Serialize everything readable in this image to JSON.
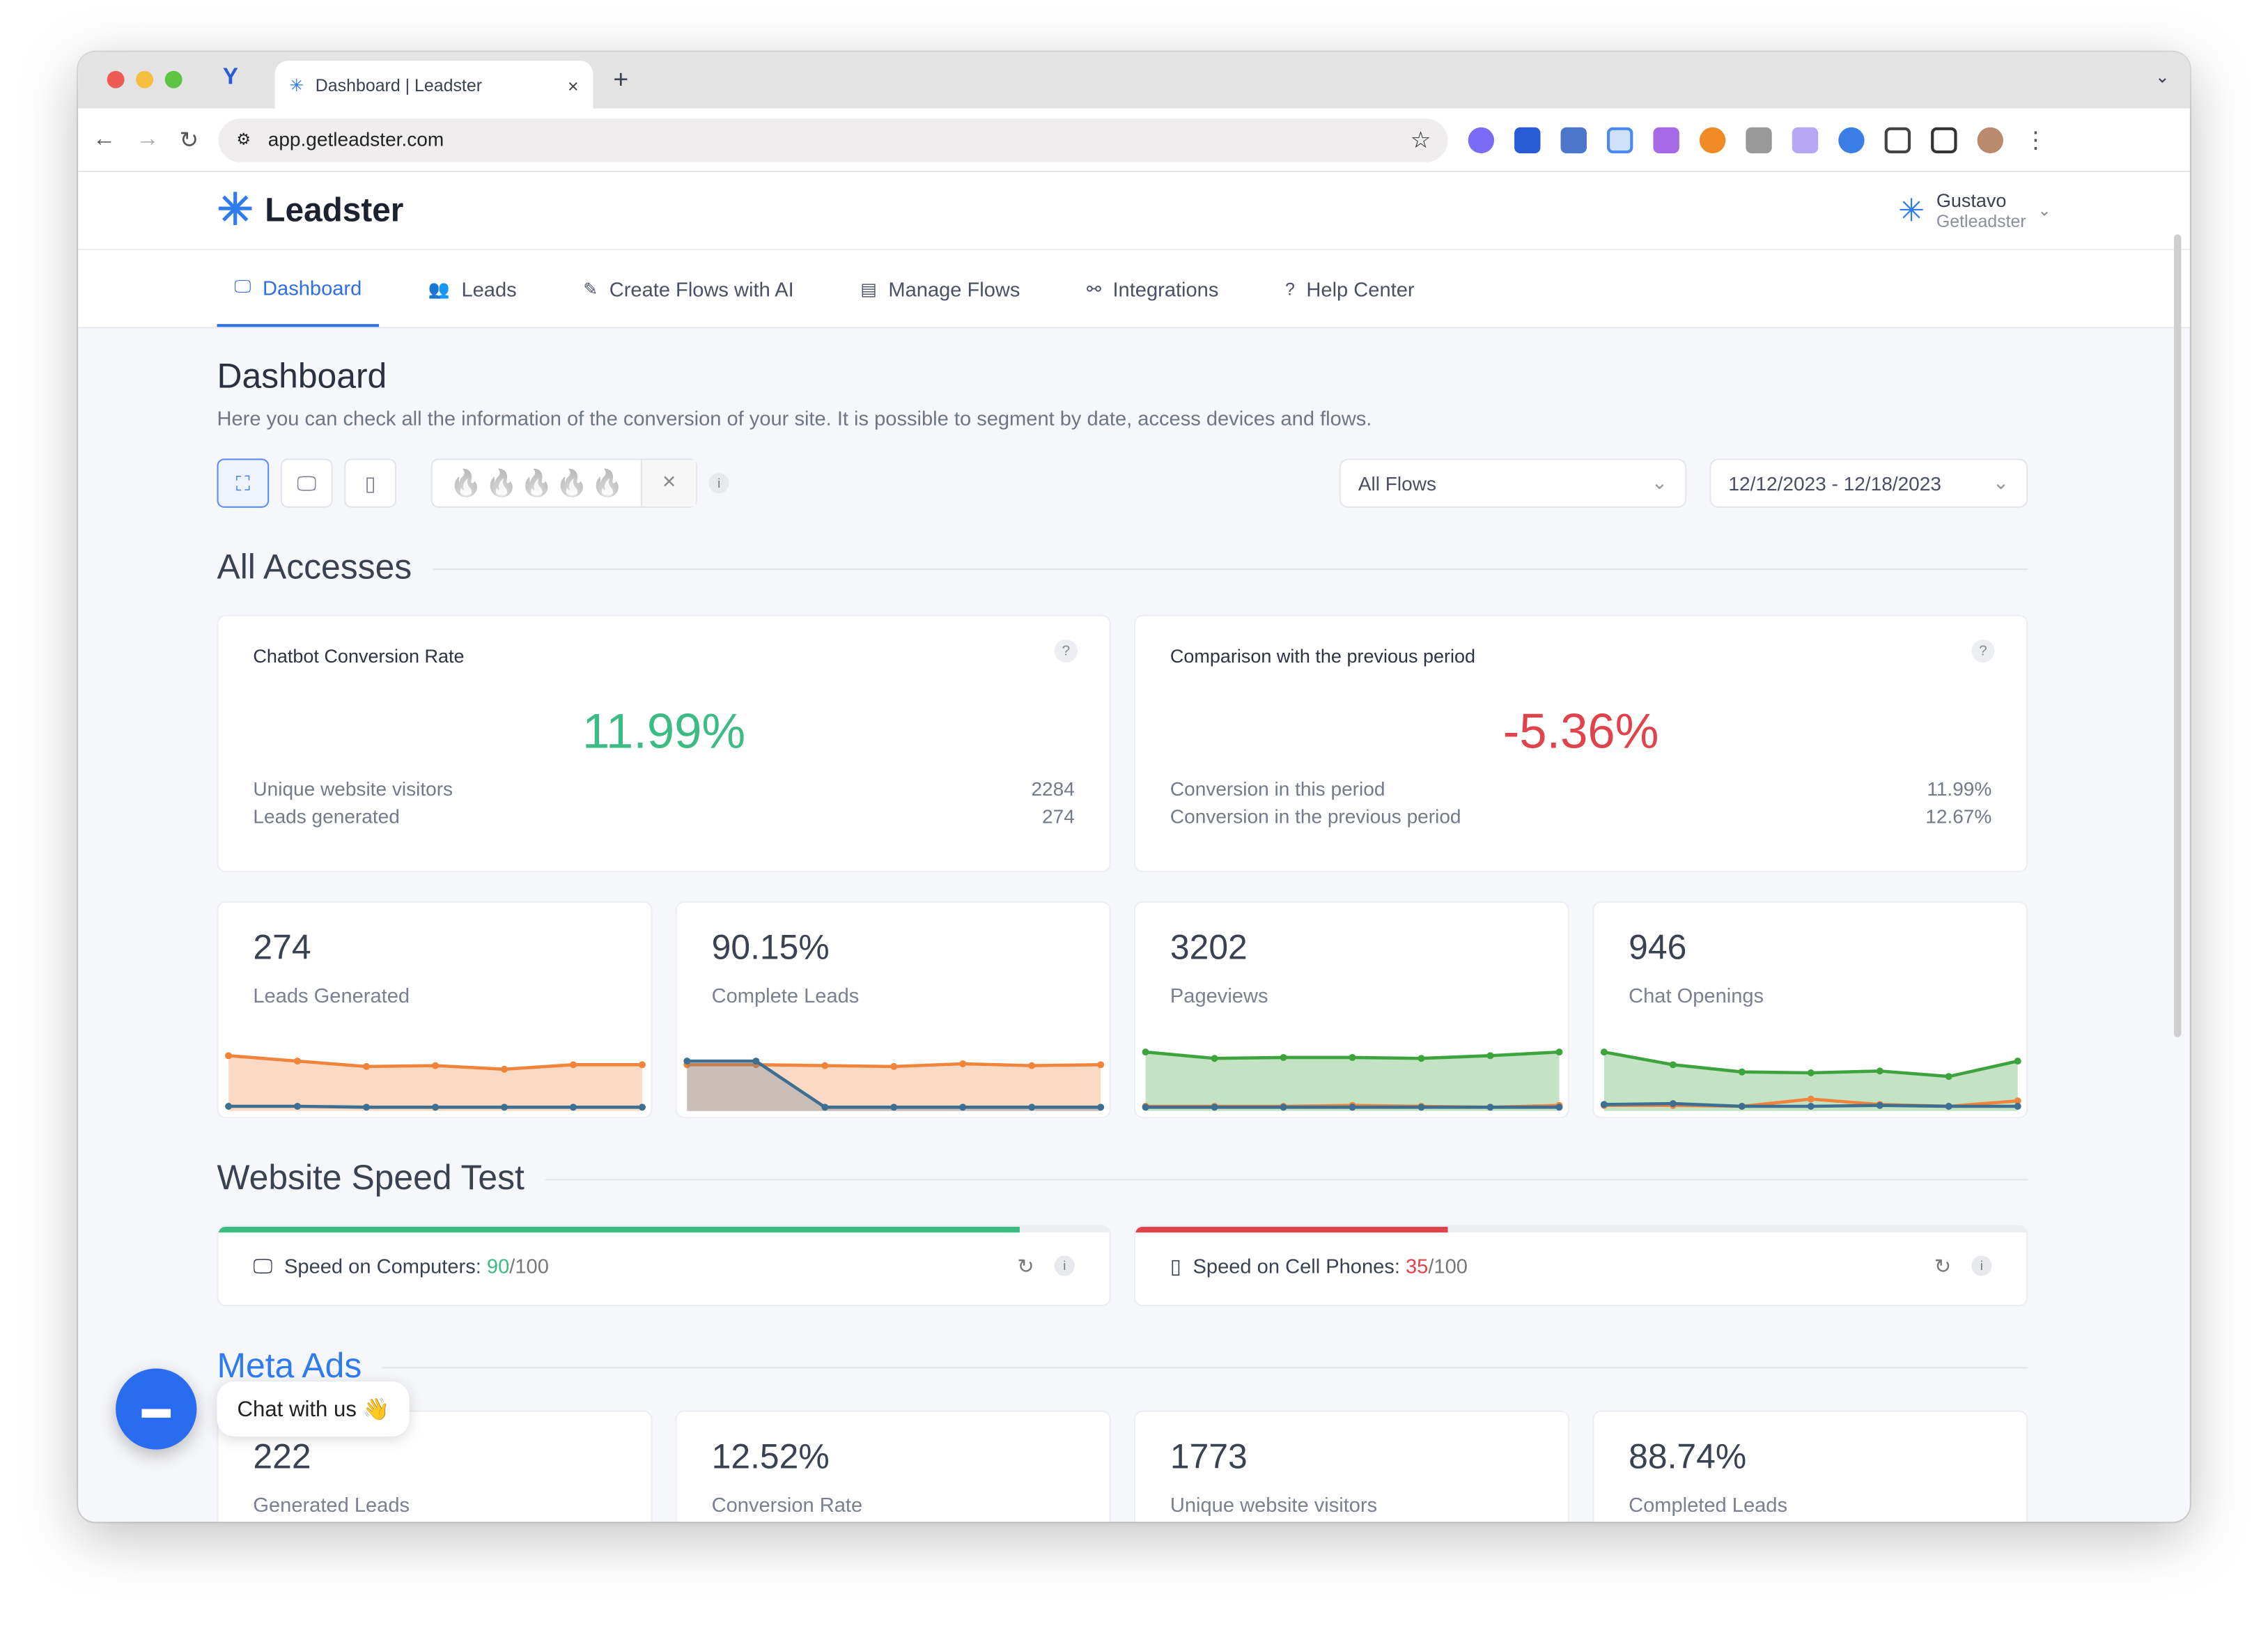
{
  "browser": {
    "tab_title": "Dashboard | Leadster",
    "url": "app.getleadster.com",
    "new_tab": "+",
    "close": "×"
  },
  "header": {
    "logo": "Leadster",
    "user_name": "Gustavo",
    "user_org": "Getleadster"
  },
  "nav": [
    {
      "label": "Dashboard",
      "icon": "monitor-icon",
      "active": true
    },
    {
      "label": "Leads",
      "icon": "users-icon"
    },
    {
      "label": "Create Flows with AI",
      "icon": "ai-flow-icon"
    },
    {
      "label": "Manage Flows",
      "icon": "chat-icon"
    },
    {
      "label": "Integrations",
      "icon": "share-icon"
    },
    {
      "label": "Help Center",
      "icon": "help-icon"
    }
  ],
  "page": {
    "title": "Dashboard",
    "description": "Here you can check all the information of the conversion of your site. It is possible to segment by date, access devices and flows."
  },
  "filters": {
    "flows": "All Flows",
    "date_range": "12/12/2023 - 12/18/2023",
    "clear": "×",
    "info": "i",
    "flame_count": 5
  },
  "all_accesses": {
    "title": "All Accesses",
    "conversion": {
      "title": "Chatbot Conversion Rate",
      "value": "11.99%",
      "rows": [
        {
          "label": "Unique website visitors",
          "value": "2284"
        },
        {
          "label": "Leads generated",
          "value": "274"
        }
      ]
    },
    "comparison": {
      "title": "Comparison with the previous period",
      "value": "-5.36%",
      "rows": [
        {
          "label": "Conversion in this period",
          "value": "11.99%"
        },
        {
          "label": "Conversion in the previous period",
          "value": "12.67%"
        }
      ]
    },
    "help": "?"
  },
  "colors": {
    "accent": "#2f6fe6",
    "green": "#3dbb85",
    "red": "#e0434b",
    "orange": "#f0843a",
    "blue": "#3d6f92",
    "chart_green": "#3da33d"
  },
  "chart_data": [
    {
      "type": "area",
      "metric": "274",
      "label": "Leads Generated",
      "series": [
        {
          "color": "#f0843a",
          "values": [
            58,
            52,
            46,
            47,
            43,
            48,
            48
          ]
        },
        {
          "color": "#3d6f92",
          "values": [
            2,
            2,
            1,
            1,
            1,
            1,
            1
          ]
        }
      ],
      "ylim": [
        0,
        80
      ]
    },
    {
      "type": "area",
      "metric": "90.15%",
      "label": "Complete Leads",
      "series": [
        {
          "color": "#f0843a",
          "values": [
            48,
            48,
            47,
            46,
            49,
            47,
            48
          ]
        },
        {
          "color": "#3d6f92",
          "values": [
            52,
            52,
            1,
            1,
            1,
            1,
            1
          ]
        }
      ],
      "ylim": [
        0,
        80
      ]
    },
    {
      "type": "area",
      "metric": "3202",
      "label": "Pageviews",
      "series": [
        {
          "color": "#3da33d",
          "values": [
            62,
            55,
            56,
            56,
            55,
            58,
            62
          ]
        },
        {
          "color": "#f0843a",
          "values": [
            2,
            2,
            2,
            3,
            2,
            1,
            3
          ]
        },
        {
          "color": "#3d6f92",
          "values": [
            1,
            1,
            1,
            1,
            1,
            1,
            1
          ]
        }
      ],
      "ylim": [
        0,
        80
      ]
    },
    {
      "type": "area",
      "metric": "946",
      "label": "Chat Openings",
      "series": [
        {
          "color": "#3da33d",
          "values": [
            62,
            48,
            40,
            39,
            41,
            35,
            52
          ]
        },
        {
          "color": "#f0843a",
          "values": [
            3,
            3,
            2,
            10,
            4,
            2,
            8
          ]
        },
        {
          "color": "#3d6f92",
          "values": [
            4,
            5,
            2,
            2,
            3,
            2,
            2
          ]
        }
      ],
      "ylim": [
        0,
        80
      ]
    }
  ],
  "speed": {
    "title": "Website Speed Test",
    "computers": {
      "label": "Speed on Computers: ",
      "score": "90",
      "max": "/100",
      "progress": 0.9
    },
    "phones": {
      "label": "Speed on Cell Phones: ",
      "score": "35",
      "max": "/100",
      "progress": 0.35
    }
  },
  "meta_ads": {
    "title": "Meta Ads",
    "cards": [
      {
        "value": "222",
        "label": "Generated Leads"
      },
      {
        "value": "12.52%",
        "label": "Conversion Rate"
      },
      {
        "value": "1773",
        "label": "Unique website visitors"
      },
      {
        "value": "88.74%",
        "label": "Completed Leads"
      }
    ]
  },
  "chat": {
    "label": "Chat with us 👋"
  }
}
